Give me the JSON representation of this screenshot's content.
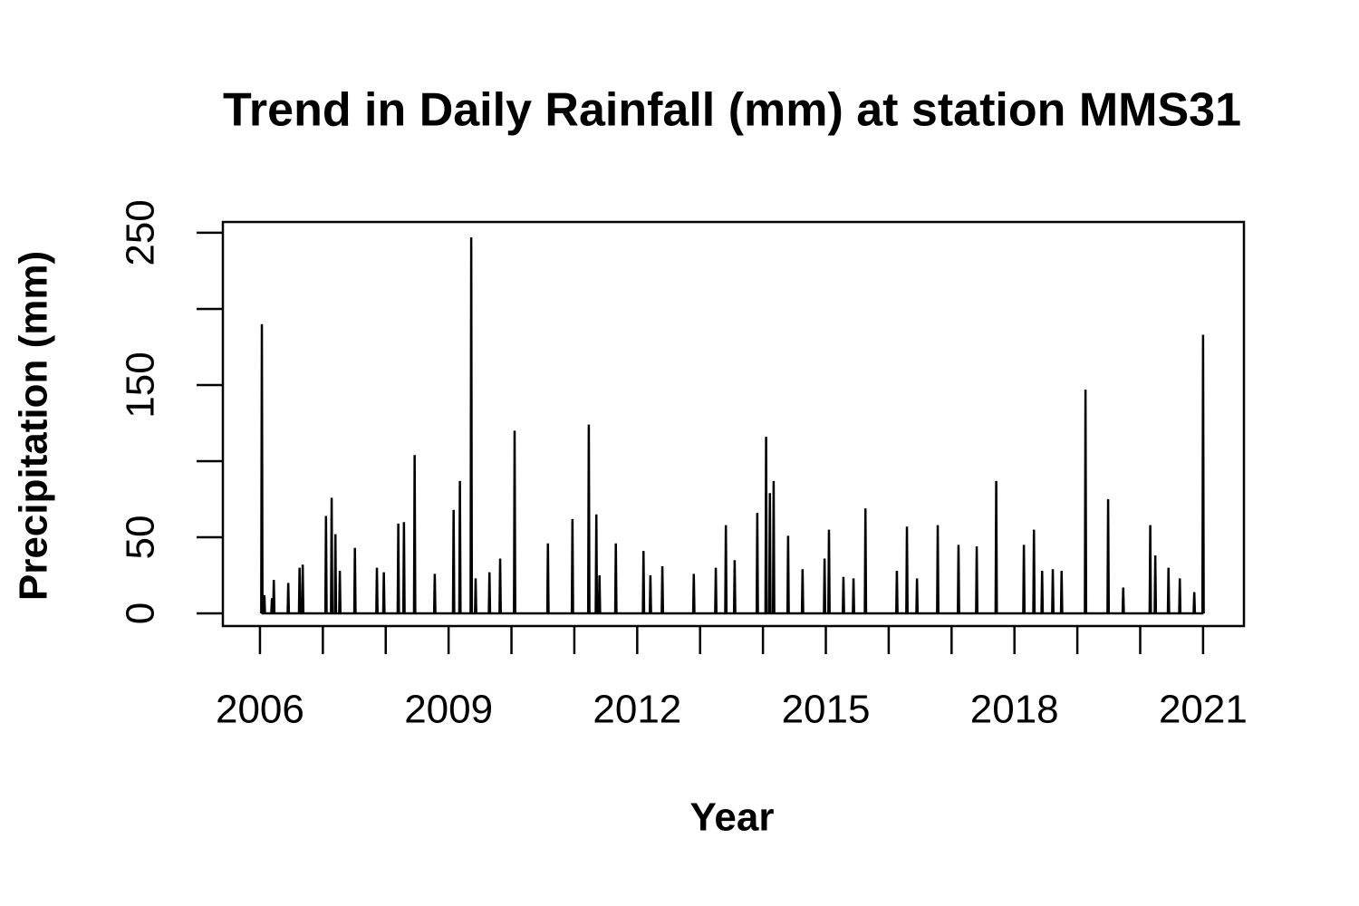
{
  "chart_data": {
    "type": "line",
    "title": "Trend in Daily Rainfall (mm) at station MMS31",
    "x_label": "Year",
    "y_label": "Precipitation (mm)",
    "xlim": [
      2005.41,
      2021.65
    ],
    "ylim": [
      -8.3,
      257.1
    ],
    "xticks": [
      2006,
      2009,
      2012,
      2015,
      2018,
      2021
    ],
    "xminor_ticks": [
      2007,
      2008,
      2010,
      2011,
      2013,
      2014,
      2016,
      2017,
      2019,
      2020
    ],
    "yticks": [
      0,
      50,
      150,
      250
    ],
    "yminor_ticks": [
      100,
      200
    ],
    "color": "#000000",
    "x": [
      2006.02,
      2006.03,
      2006.04,
      2006.06,
      2006.07,
      2006.08,
      2006.18,
      2006.19,
      2006.2,
      2006.21,
      2006.22,
      2006.23,
      2006.44,
      2006.45,
      2006.46,
      2006.62,
      2006.63,
      2006.64,
      2006.67,
      2006.68,
      2006.69,
      2007.04,
      2007.05,
      2007.06,
      2007.13,
      2007.14,
      2007.15,
      2007.19,
      2007.2,
      2007.21,
      2007.26,
      2007.27,
      2007.28,
      2007.5,
      2007.51,
      2007.52,
      2007.85,
      2007.86,
      2007.87,
      2007.96,
      2007.97,
      2007.98,
      2008.19,
      2008.2,
      2008.21,
      2008.28,
      2008.29,
      2008.3,
      2008.45,
      2008.46,
      2008.47,
      2008.77,
      2008.78,
      2008.79,
      2009.07,
      2009.08,
      2009.09,
      2009.17,
      2009.18,
      2009.19,
      2009.35,
      2009.36,
      2009.37,
      2009.42,
      2009.43,
      2009.44,
      2009.64,
      2009.65,
      2009.66,
      2009.81,
      2009.82,
      2009.83,
      2010.04,
      2010.05,
      2010.06,
      2010.57,
      2010.58,
      2010.59,
      2010.96,
      2010.97,
      2010.98,
      2011.22,
      2011.23,
      2011.24,
      2011.34,
      2011.35,
      2011.36,
      2011.39,
      2011.4,
      2011.41,
      2011.65,
      2011.66,
      2011.67,
      2012.09,
      2012.1,
      2012.11,
      2012.2,
      2012.21,
      2012.22,
      2012.39,
      2012.4,
      2012.41,
      2012.89,
      2012.9,
      2012.91,
      2013.24,
      2013.25,
      2013.26,
      2013.4,
      2013.41,
      2013.42,
      2013.54,
      2013.55,
      2013.56,
      2013.9,
      2013.91,
      2013.92,
      2014.04,
      2014.05,
      2014.06,
      2014.1,
      2014.11,
      2014.12,
      2014.16,
      2014.17,
      2014.18,
      2014.39,
      2014.4,
      2014.41,
      2014.62,
      2014.63,
      2014.64,
      2014.97,
      2014.98,
      2014.99,
      2015.04,
      2015.05,
      2015.06,
      2015.27,
      2015.28,
      2015.29,
      2015.43,
      2015.44,
      2015.45,
      2015.62,
      2015.63,
      2015.64,
      2016.12,
      2016.13,
      2016.14,
      2016.28,
      2016.29,
      2016.3,
      2016.44,
      2016.45,
      2016.46,
      2016.77,
      2016.78,
      2016.79,
      2017.1,
      2017.11,
      2017.12,
      2017.39,
      2017.4,
      2017.41,
      2017.7,
      2017.71,
      2017.72,
      2018.14,
      2018.15,
      2018.16,
      2018.3,
      2018.31,
      2018.32,
      2018.43,
      2018.44,
      2018.45,
      2018.6,
      2018.61,
      2018.62,
      2018.74,
      2018.75,
      2018.76,
      2019.12,
      2019.13,
      2019.14,
      2019.48,
      2019.49,
      2019.5,
      2019.72,
      2019.73,
      2019.74,
      2020.15,
      2020.16,
      2020.17,
      2020.23,
      2020.24,
      2020.25,
      2020.44,
      2020.45,
      2020.46,
      2020.62,
      2020.63,
      2020.64,
      2020.85,
      2020.86,
      2020.87,
      2020.99,
      2021.0,
      2021.01
    ],
    "values": [
      0,
      190,
      0,
      0,
      12,
      0,
      0,
      10,
      0,
      0,
      22,
      0,
      0,
      20,
      0,
      0,
      30,
      0,
      0,
      32,
      0,
      0,
      64,
      0,
      0,
      76,
      0,
      0,
      52,
      0,
      0,
      28,
      0,
      0,
      43,
      0,
      0,
      30,
      0,
      0,
      27,
      0,
      0,
      59,
      0,
      0,
      60,
      0,
      0,
      104,
      0,
      0,
      26,
      0,
      0,
      68,
      0,
      0,
      87,
      0,
      0,
      247,
      0,
      0,
      23,
      0,
      0,
      27,
      0,
      0,
      36,
      0,
      0,
      120,
      0,
      0,
      46,
      0,
      0,
      62,
      0,
      0,
      124,
      0,
      0,
      65,
      0,
      0,
      25,
      0,
      0,
      46,
      0,
      0,
      41,
      0,
      0,
      25,
      0,
      0,
      31,
      0,
      0,
      26,
      0,
      0,
      30,
      0,
      0,
      58,
      0,
      0,
      35,
      0,
      0,
      66,
      0,
      0,
      116,
      0,
      0,
      79,
      0,
      0,
      87,
      0,
      0,
      51,
      0,
      0,
      29,
      0,
      0,
      36,
      0,
      0,
      55,
      0,
      0,
      24,
      0,
      0,
      23,
      0,
      0,
      69,
      0,
      0,
      28,
      0,
      0,
      57,
      0,
      0,
      23,
      0,
      0,
      58,
      0,
      0,
      45,
      0,
      0,
      44,
      0,
      0,
      87,
      0,
      0,
      45,
      0,
      0,
      55,
      0,
      0,
      28,
      0,
      0,
      29,
      0,
      0,
      28,
      0,
      0,
      147,
      0,
      0,
      75,
      0,
      0,
      17,
      0,
      0,
      58,
      0,
      0,
      38,
      0,
      0,
      30,
      0,
      0,
      23,
      0,
      0,
      14,
      0,
      0,
      183,
      0
    ]
  }
}
